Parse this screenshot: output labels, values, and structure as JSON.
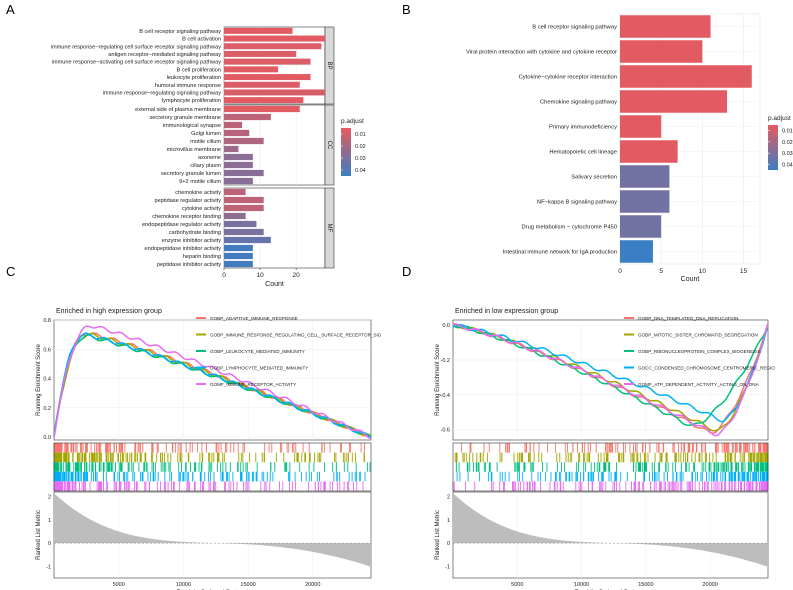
{
  "chart_data": [
    {
      "panel": "A",
      "type": "bar",
      "orientation": "horizontal",
      "xlabel": "Count",
      "xlim": [
        0,
        28
      ],
      "xticks": [
        0,
        10,
        20
      ],
      "legend": {
        "title": "p.adjust",
        "ticks": [
          "0.01",
          "0.02",
          "0.03",
          "0.04"
        ],
        "range": [
          0.005,
          0.045
        ],
        "placement": "right"
      },
      "facets": [
        {
          "name": "BP",
          "bars": [
            {
              "label": "B cell receptor signaling pathway",
              "value": 19,
              "p": 0.006
            },
            {
              "label": "B cell activation",
              "value": 28,
              "p": 0.006
            },
            {
              "label": "immune response−regulating cell surface receptor signaling pathway",
              "value": 27,
              "p": 0.008
            },
            {
              "label": "antigen receptor−mediated signaling pathway",
              "value": 20,
              "p": 0.008
            },
            {
              "label": "immune response−activating cell surface receptor signaling pathway",
              "value": 24,
              "p": 0.008
            },
            {
              "label": "B cell proliferation",
              "value": 15,
              "p": 0.006
            },
            {
              "label": "leukocyte proliferation",
              "value": 24,
              "p": 0.006
            },
            {
              "label": "humoral immune response",
              "value": 21,
              "p": 0.008
            },
            {
              "label": "immune response−regulating signaling pathway",
              "value": 28,
              "p": 0.009
            },
            {
              "label": "lymphocyte proliferation",
              "value": 22,
              "p": 0.006
            }
          ]
        },
        {
          "name": "CC",
          "bars": [
            {
              "label": "external side of plasma membrane",
              "value": 21,
              "p": 0.006
            },
            {
              "label": "secretory granule membrane",
              "value": 13,
              "p": 0.015
            },
            {
              "label": "immunological synapse",
              "value": 5,
              "p": 0.015
            },
            {
              "label": "Golgi lumen",
              "value": 7,
              "p": 0.016
            },
            {
              "label": "motile cilium",
              "value": 11,
              "p": 0.018
            },
            {
              "label": "microvillus membrane",
              "value": 4,
              "p": 0.022
            },
            {
              "label": "axoneme",
              "value": 8,
              "p": 0.026
            },
            {
              "label": "ciliary plasm",
              "value": 8,
              "p": 0.026
            },
            {
              "label": "secretory granule lumen",
              "value": 11,
              "p": 0.027
            },
            {
              "label": "9+2 motile cilium",
              "value": 8,
              "p": 0.027
            }
          ]
        },
        {
          "name": "MF",
          "bars": [
            {
              "label": "chemokine activity",
              "value": 6,
              "p": 0.015
            },
            {
              "label": "peptidase regulator activity",
              "value": 11,
              "p": 0.015
            },
            {
              "label": "cytokine activity",
              "value": 11,
              "p": 0.015
            },
            {
              "label": "chemokine receptor binding",
              "value": 6,
              "p": 0.025
            },
            {
              "label": "endopeptidase regulator activity",
              "value": 9,
              "p": 0.03
            },
            {
              "label": "carbohydrate binding",
              "value": 11,
              "p": 0.03
            },
            {
              "label": "enzyme inhibitor activity",
              "value": 13,
              "p": 0.035
            },
            {
              "label": "endopeptidase inhibitor activity",
              "value": 8,
              "p": 0.043
            },
            {
              "label": "heparin binding",
              "value": 8,
              "p": 0.043
            },
            {
              "label": "peptidase inhibitor activity",
              "value": 8,
              "p": 0.043
            }
          ]
        }
      ]
    },
    {
      "panel": "B",
      "type": "bar",
      "orientation": "horizontal",
      "xlabel": "Count",
      "xlim": [
        0,
        17
      ],
      "xticks": [
        0,
        5,
        10,
        15
      ],
      "legend": {
        "title": "p.adjust",
        "ticks": [
          "0.01",
          "0.02",
          "0.03",
          "0.04"
        ],
        "range": [
          0.005,
          0.045
        ],
        "placement": "right"
      },
      "bars": [
        {
          "label": "B cell receptor signaling pathway",
          "value": 11,
          "p": 0.006
        },
        {
          "label": "Viral protein interaction with cytokine and cytokine receptor",
          "value": 10,
          "p": 0.006
        },
        {
          "label": "Cytokine−cytokine receptor interaction",
          "value": 16,
          "p": 0.006
        },
        {
          "label": "Chemokine signaling pathway",
          "value": 13,
          "p": 0.006
        },
        {
          "label": "Primary immunodeficiency",
          "value": 5,
          "p": 0.006
        },
        {
          "label": "Hematopoietic cell lineage",
          "value": 7,
          "p": 0.006
        },
        {
          "label": "Salivary secretion",
          "value": 6,
          "p": 0.032
        },
        {
          "label": "NF−kappa B signaling pathway",
          "value": 6,
          "p": 0.032
        },
        {
          "label": "Drug metabolism − cytochrome P450",
          "value": 5,
          "p": 0.032
        },
        {
          "label": "Intestinal immune network for IgA production",
          "value": 4,
          "p": 0.045
        }
      ]
    },
    {
      "panel": "C",
      "type": "line",
      "title": "Enriched in high expression group",
      "ylabel_top": "Running Enrichment Score",
      "ylabel_bottom": "Ranked List Metric",
      "xlabel": "Rank in Ordered Dataset",
      "xlim": [
        0,
        24500
      ],
      "xticks": [
        5000,
        10000,
        15000,
        20000
      ],
      "ylim": [
        -0.02,
        0.8
      ],
      "yticks": [
        0.0,
        0.2,
        0.4,
        0.6,
        0.8
      ],
      "metric_ylim": [
        -1.5,
        2.2
      ],
      "metric_yticks": [
        -1,
        0,
        1,
        2
      ],
      "series": [
        {
          "name": "GOBP_ADAPTIVE_IMMUNE_RESPONSE",
          "color": "#f8766d",
          "peak_x": 2600,
          "peak_y": 0.71
        },
        {
          "name": "GOBP_IMMUNE_RESPONSE_REGULATING_CELL_SURFACE_RECEPTOR_SIG",
          "color": "#a3a500",
          "peak_x": 2700,
          "peak_y": 0.7
        },
        {
          "name": "GOBP_LEUKOCYTE_MEDIATED_IMMUNITY",
          "color": "#00bf7d",
          "peak_x": 2500,
          "peak_y": 0.69
        },
        {
          "name": "GOBP_LYMPHOCYTE_MEDIATED_IMMUNITY",
          "color": "#00b0f6",
          "peak_x": 2400,
          "peak_y": 0.7
        },
        {
          "name": "GOMF_IMMUNE_RECEPTOR_ACTIVITY",
          "color": "#e76bf3",
          "peak_x": 2900,
          "peak_y": 0.76
        }
      ]
    },
    {
      "panel": "D",
      "type": "line",
      "title": "Enriched in low expression group",
      "ylabel_top": "Running Enrichment Score",
      "ylabel_bottom": "Ranked List Metric",
      "xlabel": "Rank in Ordered Dataset",
      "xlim": [
        0,
        24500
      ],
      "xticks": [
        5000,
        10000,
        15000,
        20000
      ],
      "ylim": [
        -0.66,
        0.03
      ],
      "yticks": [
        0.0,
        -0.2,
        -0.4,
        -0.6
      ],
      "metric_ylim": [
        -1.5,
        2.2
      ],
      "metric_yticks": [
        -1,
        0,
        1,
        2
      ],
      "series": [
        {
          "name": "GOBP_DNA_TEMPLATED_DNA_REPLICATION",
          "color": "#f8766d",
          "trough_x": 20000,
          "trough_y": -0.62
        },
        {
          "name": "GOBP_MITOTIC_SISTER_CHROMATID_SEGREGATION",
          "color": "#a3a500",
          "trough_x": 20500,
          "trough_y": -0.61
        },
        {
          "name": "GOBP_RIBONUCLEOPROTEIN_COMPLEX_BIOGENESIS",
          "color": "#00bf7d",
          "trough_x": 18500,
          "trough_y": -0.58
        },
        {
          "name": "GOCC_CONDENSED_CHROMOSOME_CENTROMERIC_REGIO",
          "color": "#00b0f6",
          "trough_x": 21000,
          "trough_y": -0.55
        },
        {
          "name": "GOMF_ATP_DEPENDENT_ACTIVITY_ACTING_ON_DNA",
          "color": "#e76bf3",
          "trough_x": 20500,
          "trough_y": -0.63
        }
      ]
    }
  ],
  "panels": {
    "A": "A",
    "B": "B",
    "C": "C",
    "D": "D"
  }
}
